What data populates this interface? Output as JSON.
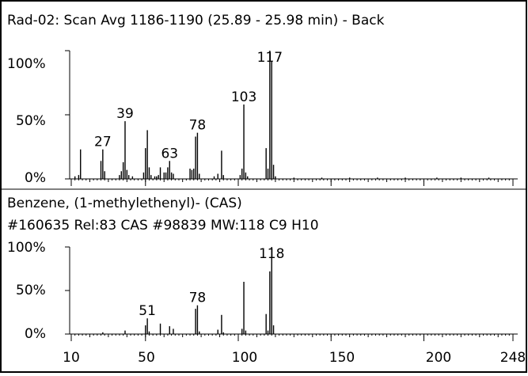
{
  "chart_data": [
    {
      "type": "bar",
      "title": "Rad-02: Scan  Avg 1186-1190 (25.89 - 25.98 min) - Back",
      "subtitle": "",
      "y_ticks": [
        "100%",
        "50%",
        "0%"
      ],
      "ylim": [
        0,
        100
      ],
      "xlim": [
        10,
        248
      ],
      "peak_labels": [
        {
          "x": 27,
          "label": "27"
        },
        {
          "x": 39,
          "label": "39"
        },
        {
          "x": 63,
          "label": "63"
        },
        {
          "x": 78,
          "label": "78"
        },
        {
          "x": 103,
          "label": "103"
        },
        {
          "x": 117,
          "label": "117"
        }
      ],
      "peaks": [
        {
          "x": 12,
          "y": 2
        },
        {
          "x": 14,
          "y": 3
        },
        {
          "x": 15,
          "y": 23
        },
        {
          "x": 26,
          "y": 14
        },
        {
          "x": 27,
          "y": 23
        },
        {
          "x": 28,
          "y": 6
        },
        {
          "x": 36,
          "y": 3
        },
        {
          "x": 37,
          "y": 6
        },
        {
          "x": 38,
          "y": 13
        },
        {
          "x": 39,
          "y": 45
        },
        {
          "x": 40,
          "y": 7
        },
        {
          "x": 41,
          "y": 3
        },
        {
          "x": 43,
          "y": 2
        },
        {
          "x": 49,
          "y": 5
        },
        {
          "x": 50,
          "y": 24
        },
        {
          "x": 51,
          "y": 38
        },
        {
          "x": 52,
          "y": 9
        },
        {
          "x": 53,
          "y": 3
        },
        {
          "x": 55,
          "y": 2
        },
        {
          "x": 56,
          "y": 2
        },
        {
          "x": 57,
          "y": 3
        },
        {
          "x": 58,
          "y": 9
        },
        {
          "x": 60,
          "y": 5
        },
        {
          "x": 61,
          "y": 5
        },
        {
          "x": 62,
          "y": 9
        },
        {
          "x": 63,
          "y": 14
        },
        {
          "x": 64,
          "y": 5
        },
        {
          "x": 65,
          "y": 4
        },
        {
          "x": 74,
          "y": 8
        },
        {
          "x": 75,
          "y": 7
        },
        {
          "x": 76,
          "y": 8
        },
        {
          "x": 77,
          "y": 33
        },
        {
          "x": 78,
          "y": 36
        },
        {
          "x": 79,
          "y": 4
        },
        {
          "x": 87,
          "y": 2
        },
        {
          "x": 89,
          "y": 4
        },
        {
          "x": 91,
          "y": 22
        },
        {
          "x": 92,
          "y": 3
        },
        {
          "x": 101,
          "y": 3
        },
        {
          "x": 102,
          "y": 8
        },
        {
          "x": 103,
          "y": 58
        },
        {
          "x": 104,
          "y": 5
        },
        {
          "x": 105,
          "y": 2
        },
        {
          "x": 115,
          "y": 24
        },
        {
          "x": 116,
          "y": 8
        },
        {
          "x": 117,
          "y": 100
        },
        {
          "x": 118,
          "y": 92
        },
        {
          "x": 119,
          "y": 11
        },
        {
          "x": 120,
          "y": 2
        },
        {
          "x": 130,
          "y": 1
        },
        {
          "x": 145,
          "y": 1
        },
        {
          "x": 160,
          "y": 1
        },
        {
          "x": 175,
          "y": 1
        },
        {
          "x": 190,
          "y": 1
        },
        {
          "x": 207,
          "y": 1
        },
        {
          "x": 220,
          "y": 1
        },
        {
          "x": 235,
          "y": 1
        }
      ]
    },
    {
      "type": "bar",
      "title": "Benzene, (1-methylethenyl)- (CAS)",
      "subtitle": "#160635 Rel:83 CAS #98839 MW:118 C9 H10",
      "y_ticks": [
        "100%",
        "50%",
        "0%"
      ],
      "ylim": [
        0,
        100
      ],
      "xlim": [
        10,
        248
      ],
      "peak_labels": [
        {
          "x": 51,
          "label": "51"
        },
        {
          "x": 78,
          "label": "78"
        },
        {
          "x": 118,
          "label": "118"
        }
      ],
      "peaks": [
        {
          "x": 27,
          "y": 2
        },
        {
          "x": 39,
          "y": 4
        },
        {
          "x": 50,
          "y": 10
        },
        {
          "x": 51,
          "y": 18
        },
        {
          "x": 52,
          "y": 3
        },
        {
          "x": 58,
          "y": 12
        },
        {
          "x": 63,
          "y": 9
        },
        {
          "x": 65,
          "y": 6
        },
        {
          "x": 77,
          "y": 29
        },
        {
          "x": 78,
          "y": 33
        },
        {
          "x": 79,
          "y": 3
        },
        {
          "x": 89,
          "y": 5
        },
        {
          "x": 91,
          "y": 22
        },
        {
          "x": 92,
          "y": 2
        },
        {
          "x": 102,
          "y": 6
        },
        {
          "x": 103,
          "y": 60
        },
        {
          "x": 104,
          "y": 4
        },
        {
          "x": 115,
          "y": 23
        },
        {
          "x": 116,
          "y": 4
        },
        {
          "x": 117,
          "y": 72
        },
        {
          "x": 118,
          "y": 100
        },
        {
          "x": 119,
          "y": 10
        }
      ]
    }
  ],
  "x_axis": {
    "ticks": [
      10,
      50,
      100,
      150,
      200,
      248
    ],
    "tick_labels": [
      "10",
      "50",
      "100",
      "150",
      "200",
      "248"
    ]
  }
}
